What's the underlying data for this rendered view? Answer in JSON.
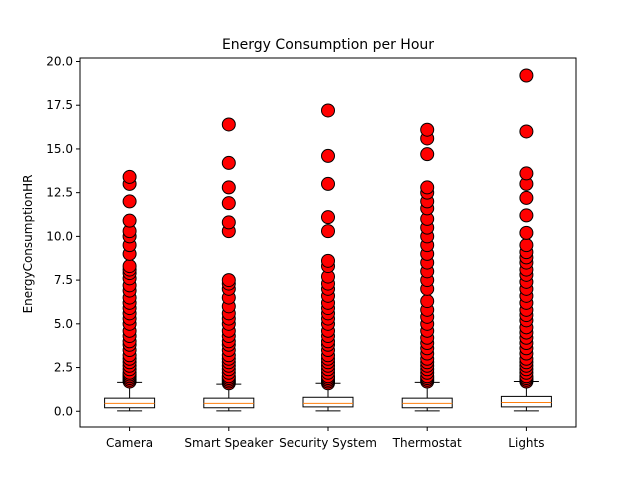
{
  "chart_data": {
    "type": "box",
    "title": "Energy Consumption per Hour",
    "xlabel": "",
    "ylabel": "EnergyConsumptionHR",
    "ylim": [
      -0.9,
      20.2
    ],
    "yticks": [
      "0.0",
      "2.5",
      "5.0",
      "7.5",
      "10.0",
      "12.5",
      "15.0",
      "17.5",
      "20.0"
    ],
    "ytick_values": [
      0,
      2.5,
      5,
      7.5,
      10,
      12.5,
      15,
      17.5,
      20
    ],
    "grid": false,
    "colors": {
      "outlier_fill": "#ff0000",
      "median": "#ff7f0e",
      "box": "#000000"
    },
    "categories": [
      "Camera",
      "Smart Speaker",
      "Security System",
      "Thermostat",
      "Lights"
    ],
    "boxes": [
      {
        "category": "Camera",
        "whisker_low": 0.02,
        "q1": 0.2,
        "median": 0.45,
        "q3": 0.75,
        "whisker_high": 1.65,
        "outliers": [
          1.7,
          1.8,
          1.9,
          2.0,
          2.1,
          2.2,
          2.4,
          2.6,
          2.8,
          3.0,
          3.2,
          3.5,
          3.8,
          4.0,
          4.3,
          4.6,
          5.0,
          5.3,
          5.6,
          5.9,
          6.2,
          6.5,
          6.9,
          7.2,
          7.6,
          7.9,
          8.1,
          8.3,
          9.0,
          9.5,
          10.0,
          10.3,
          10.9,
          12.0,
          13.0,
          13.4
        ]
      },
      {
        "category": "Smart Speaker",
        "whisker_low": 0.02,
        "q1": 0.2,
        "median": 0.45,
        "q3": 0.75,
        "whisker_high": 1.55,
        "outliers": [
          1.6,
          1.7,
          1.8,
          1.9,
          2.0,
          2.2,
          2.4,
          2.6,
          2.8,
          3.0,
          3.2,
          3.5,
          3.8,
          4.0,
          4.3,
          4.6,
          5.0,
          5.3,
          5.6,
          6.0,
          6.5,
          7.0,
          7.3,
          7.5,
          10.3,
          10.8,
          11.9,
          12.8,
          14.2,
          16.4
        ]
      },
      {
        "category": "Security System",
        "whisker_low": 0.02,
        "q1": 0.25,
        "median": 0.45,
        "q3": 0.8,
        "whisker_high": 1.6,
        "outliers": [
          1.6,
          1.7,
          1.8,
          1.9,
          2.0,
          2.2,
          2.4,
          2.6,
          2.8,
          3.0,
          3.2,
          3.5,
          3.8,
          4.0,
          4.3,
          4.6,
          5.0,
          5.3,
          5.6,
          5.9,
          6.2,
          6.6,
          7.0,
          7.3,
          7.7,
          8.3,
          8.6,
          10.3,
          11.1,
          13.0,
          14.6,
          17.2
        ]
      },
      {
        "category": "Thermostat",
        "whisker_low": 0.02,
        "q1": 0.2,
        "median": 0.45,
        "q3": 0.75,
        "whisker_high": 1.65,
        "outliers": [
          1.7,
          1.8,
          1.9,
          2.0,
          2.2,
          2.4,
          2.6,
          2.8,
          3.0,
          3.3,
          3.6,
          3.9,
          4.2,
          4.6,
          5.0,
          5.4,
          5.8,
          6.3,
          7.0,
          7.5,
          8.0,
          8.5,
          9.0,
          9.5,
          10.0,
          10.5,
          11.0,
          11.6,
          12.0,
          12.5,
          12.8,
          14.7,
          15.6,
          16.1
        ]
      },
      {
        "category": "Lights",
        "whisker_low": 0.02,
        "q1": 0.25,
        "median": 0.5,
        "q3": 0.85,
        "whisker_high": 1.7,
        "outliers": [
          1.7,
          1.8,
          1.9,
          2.0,
          2.2,
          2.4,
          2.6,
          2.8,
          3.0,
          3.3,
          3.6,
          3.9,
          4.2,
          4.5,
          4.8,
          5.2,
          5.5,
          5.8,
          6.2,
          6.6,
          7.0,
          7.4,
          7.8,
          8.1,
          8.5,
          8.8,
          9.1,
          9.5,
          10.2,
          11.2,
          12.2,
          13.0,
          13.6,
          16.0,
          19.2
        ]
      }
    ]
  }
}
